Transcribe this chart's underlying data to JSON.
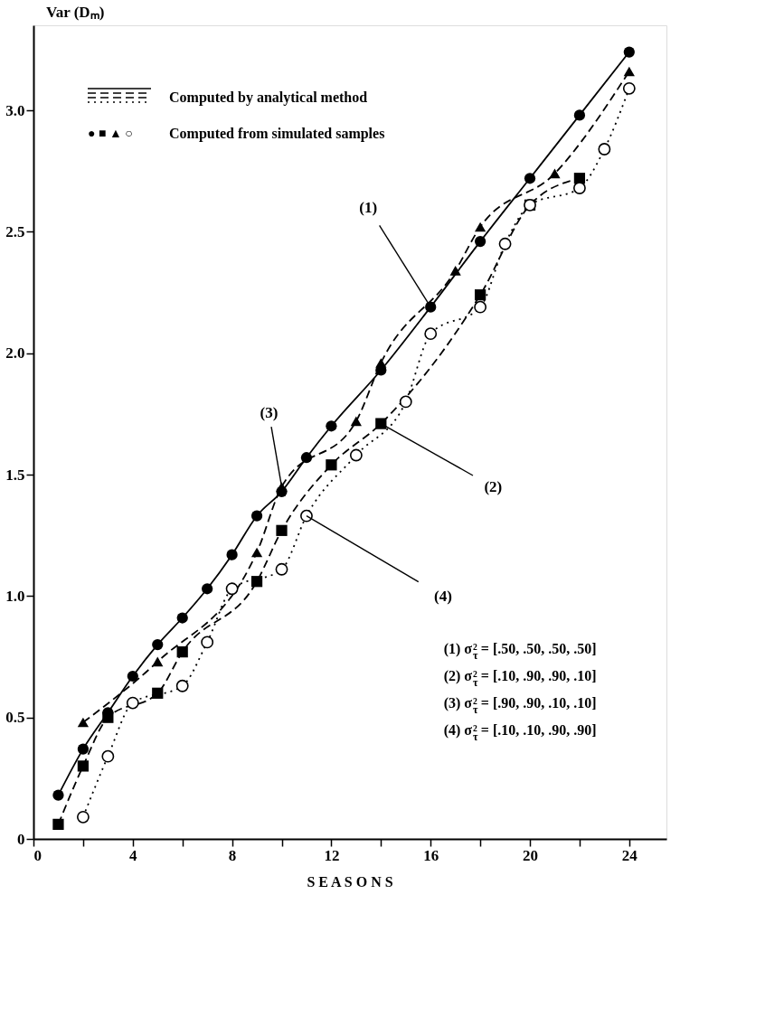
{
  "chart_data": {
    "type": "line",
    "xlabel": "S E A S O N S",
    "ylabel": "Var (Dₘ)",
    "xlim": [
      0,
      25.5
    ],
    "ylim": [
      0,
      3.35
    ],
    "xticks": [
      0,
      {
        "value": 2,
        "label": null
      },
      4,
      {
        "value": 6,
        "label": null
      },
      8,
      {
        "value": 10,
        "label": null
      },
      12,
      {
        "value": 14,
        "label": null
      },
      16,
      {
        "value": 18,
        "label": null
      },
      20,
      {
        "value": 22,
        "label": null
      },
      24
    ],
    "yticks": [
      {
        "value": 0,
        "label": "0"
      },
      {
        "value": 0.5,
        "label": "0.5"
      },
      {
        "value": 1,
        "label": "1.0"
      },
      {
        "value": 1.5,
        "label": "1.5"
      },
      {
        "value": 2,
        "label": "2.0"
      },
      {
        "value": 2.5,
        "label": "2.5"
      },
      {
        "value": 3,
        "label": "3.0"
      }
    ],
    "grid": false,
    "series": [
      {
        "color": "#000000",
        "marker": "circle",
        "line_style": "solid",
        "x": [
          1,
          2,
          3,
          4,
          5,
          6,
          7,
          8,
          9,
          10,
          11,
          12,
          14,
          16,
          18,
          20,
          22,
          24
        ],
        "values": [
          0.18,
          0.37,
          0.52,
          0.67,
          0.8,
          0.91,
          1.03,
          1.17,
          1.33,
          1.43,
          1.57,
          1.7,
          1.93,
          2.19,
          2.46,
          2.72,
          2.98,
          3.24
        ]
      },
      {
        "color": "#000000",
        "marker": "square",
        "line_style": "dashed",
        "x": [
          1,
          2,
          3,
          5,
          6,
          9,
          10,
          12,
          14,
          18,
          20,
          22
        ],
        "values": [
          0.06,
          0.3,
          0.5,
          0.6,
          0.77,
          1.06,
          1.27,
          1.54,
          1.71,
          2.24,
          2.61,
          2.72
        ]
      },
      {
        "color": "#000000",
        "marker": "triangle",
        "line_style": "dashed",
        "x": [
          2,
          5,
          9,
          10,
          13,
          14,
          17,
          18,
          21,
          24
        ],
        "values": [
          0.48,
          0.73,
          1.18,
          1.45,
          1.72,
          1.96,
          2.34,
          2.52,
          2.74,
          3.16
        ]
      },
      {
        "color": "#000000",
        "marker": "circle",
        "line_style": "dotted",
        "x": [
          2,
          3,
          4,
          6,
          7,
          8,
          10,
          11,
          13,
          15,
          16,
          18,
          19,
          20,
          22,
          23,
          24
        ],
        "values": [
          0.09,
          0.34,
          0.56,
          0.63,
          0.81,
          1.03,
          1.11,
          1.33,
          1.58,
          1.8,
          2.08,
          2.19,
          2.45,
          2.61,
          2.68,
          2.84,
          3.09
        ]
      }
    ],
    "annotations": [
      "Computed by analytical method",
      "● ■ ▲ ○",
      "Computed from simulated samples",
      "(1)   σ$_{τ}$²   =    [.50,  .50,  .50,  .50]",
      "(2)   σ$_{τ}$²   =    [.10,  .90,  .90,  .10]",
      "(3)   σ$_{τ}$²   =    [.90,  .90,  .10,  .10]",
      "(4)   σ$_{τ}$²   =    [.10,  .10,  .90,  .90]",
      {
        "text": "(1)",
        "x": 16,
        "y": 2.19
      },
      {
        "text": "(2)",
        "x": 14,
        "y": 1.71
      },
      {
        "text": "(3)",
        "x": 10,
        "y": 1.45
      },
      {
        "text": "(4)",
        "x": 11,
        "y": 1.33
      }
    ]
  }
}
